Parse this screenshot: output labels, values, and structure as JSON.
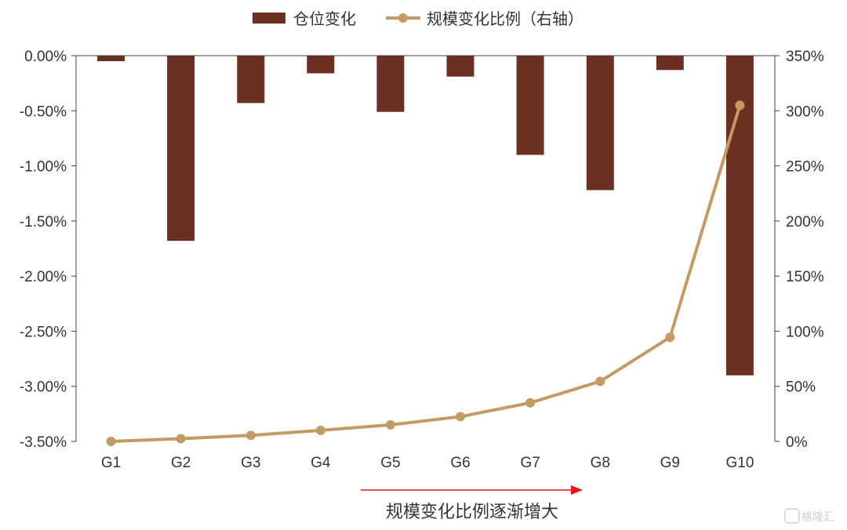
{
  "chart_data": {
    "type": "bar",
    "categories": [
      "G1",
      "G2",
      "G3",
      "G4",
      "G5",
      "G6",
      "G7",
      "G8",
      "G9",
      "G10"
    ],
    "series": [
      {
        "name": "仓位变化",
        "type": "bar",
        "axis": "left",
        "color": "#6b3022",
        "values": [
          -0.05,
          -1.68,
          -0.43,
          -0.16,
          -0.51,
          -0.19,
          -0.9,
          -1.22,
          -0.13,
          -2.9
        ]
      },
      {
        "name": "规模变化比例（右轴）",
        "type": "line",
        "axis": "right",
        "color": "#c49a64",
        "values": [
          0,
          2.5,
          5.5,
          10,
          15,
          22.5,
          35,
          54.5,
          94.5,
          305
        ]
      }
    ],
    "y_left": {
      "min": -3.5,
      "max": 0,
      "step": 0.5,
      "ticks": [
        "0.00%",
        "-0.50%",
        "-1.00%",
        "-1.50%",
        "-2.00%",
        "-2.50%",
        "-3.00%",
        "-3.50%"
      ]
    },
    "y_right": {
      "min": 0,
      "max": 350,
      "step": 50,
      "ticks": [
        "350%",
        "300%",
        "250%",
        "200%",
        "150%",
        "100%",
        "50%",
        "0%"
      ]
    },
    "legend": {
      "position": "top-center"
    },
    "grid": false,
    "annotation": {
      "text": "规模变化比例逐渐增大",
      "arrow_color": "#e8141a"
    }
  },
  "watermark": {
    "text": "格隆汇"
  }
}
